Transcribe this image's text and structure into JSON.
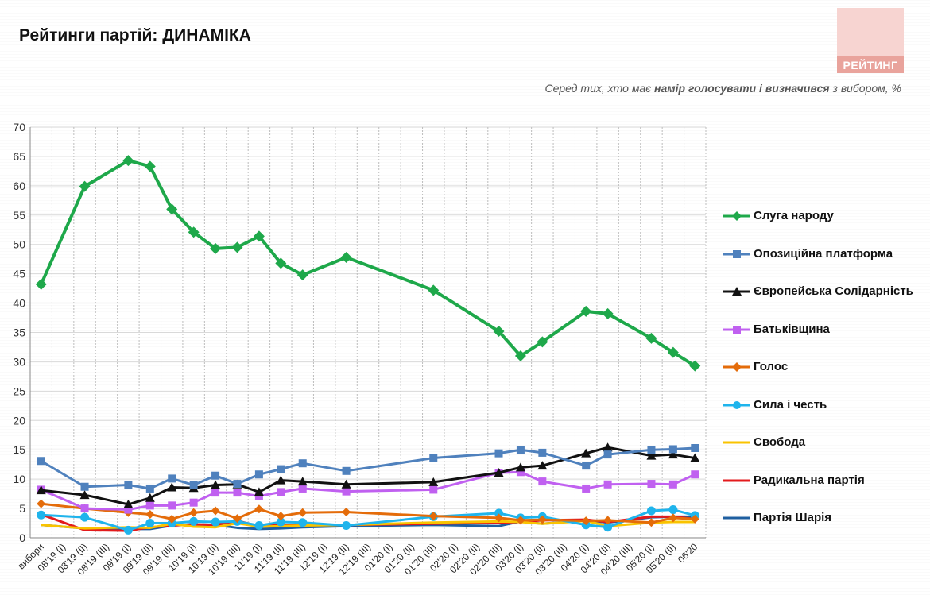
{
  "title": "Рейтинги партій: ДИНАМІКА",
  "logo": {
    "text": "РЕЙТИНГ"
  },
  "subtitle": {
    "pre": "Серед тих, хто має ",
    "bold": "намір голосувати і визначився",
    "post": " з вибором, %"
  },
  "chart_data": {
    "type": "line",
    "categories": [
      "вибори",
      "08'19 (І)",
      "08'19 (ІІ)",
      "08'19 (ІІІ)",
      "09'19 (І)",
      "09'19 (ІІ)",
      "09'19 (ІІІ)",
      "10'19 (І)",
      "10'19 (ІІ)",
      "10'19 (ІІІ)",
      "11'19 (І)",
      "11'19 (ІІ)",
      "11'19 (ІІІ)",
      "12'19 (І)",
      "12'19 (ІІ)",
      "12'19 (ІІІ)",
      "01'20 (І)",
      "01'20 (ІІ)",
      "01'20 (ІІІ)",
      "02'20 (І)",
      "02'20 (ІІ)",
      "02'20 (ІІІ)",
      "03'20 (І)",
      "03'20 (ІІ)",
      "03'20 (ІІІ)",
      "04'20 (І)",
      "04'20 (ІІ)",
      "04'20 (ІІІ)",
      "05'20 (І)",
      "05'20 (ІІ)",
      "06'20"
    ],
    "ylim": [
      0,
      70
    ],
    "yticks": [
      0,
      5,
      10,
      15,
      20,
      25,
      30,
      35,
      40,
      45,
      50,
      55,
      60,
      65,
      70
    ],
    "grid": true,
    "legend_position": "right",
    "series": [
      {
        "name": "Слуга народу",
        "color": "#1ea84a",
        "marker": "diamond",
        "values": [
          43.2,
          null,
          59.9,
          null,
          64.3,
          63.3,
          56,
          52.1,
          49.3,
          49.5,
          51.4,
          46.8,
          44.8,
          null,
          47.8,
          null,
          null,
          null,
          42.2,
          null,
          null,
          35.2,
          31,
          33.4,
          null,
          38.6,
          38.2,
          null,
          34,
          31.6,
          29.3
        ]
      },
      {
        "name": "Опозиційна платформа",
        "color": "#4f81bd",
        "marker": "square",
        "values": [
          13.1,
          null,
          8.7,
          null,
          9,
          8.4,
          10.1,
          9,
          10.6,
          9.2,
          10.8,
          11.7,
          12.7,
          null,
          11.4,
          null,
          null,
          null,
          13.6,
          null,
          null,
          14.4,
          15,
          14.5,
          null,
          12.3,
          14.2,
          null,
          15,
          15.1,
          15.3
        ]
      },
      {
        "name": "Європейська Солідарність",
        "color": "#111111",
        "marker": "triangle",
        "values": [
          8.1,
          null,
          7.3,
          null,
          5.7,
          6.8,
          8.6,
          8.5,
          9,
          9.1,
          7.8,
          9.8,
          9.6,
          null,
          9.1,
          null,
          null,
          null,
          9.5,
          null,
          null,
          11.1,
          12,
          12.3,
          null,
          14.4,
          15.4,
          null,
          14,
          14.2,
          13.6
        ]
      },
      {
        "name": "Батьківщина",
        "color": "#c060f0",
        "marker": "square",
        "values": [
          8.2,
          null,
          5,
          null,
          4.8,
          5.5,
          5.5,
          6,
          7.7,
          7.7,
          7.1,
          7.8,
          8.4,
          null,
          7.9,
          null,
          null,
          null,
          8.2,
          null,
          null,
          11.1,
          11.2,
          9.6,
          null,
          8.4,
          9.1,
          null,
          9.2,
          9.1,
          10.8
        ]
      },
      {
        "name": "Голос",
        "color": "#e46c0a",
        "marker": "diamond",
        "values": [
          5.8,
          null,
          5,
          null,
          4.3,
          4,
          3.2,
          4.3,
          4.6,
          3.3,
          4.9,
          3.7,
          4.3,
          null,
          4.4,
          null,
          null,
          null,
          3.7,
          null,
          null,
          3.4,
          3,
          3.1,
          null,
          2.9,
          3,
          null,
          2.6,
          3.4,
          3.2
        ]
      },
      {
        "name": "Сила і честь",
        "color": "#1fb4ec",
        "marker": "circle",
        "values": [
          3.9,
          null,
          3.5,
          null,
          1.3,
          2.5,
          2.5,
          2.8,
          2.7,
          2.8,
          2.1,
          2.7,
          2.6,
          null,
          2.1,
          null,
          null,
          null,
          3.6,
          null,
          null,
          4.2,
          3.4,
          3.6,
          null,
          2.2,
          1.8,
          null,
          4.6,
          4.8,
          3.8
        ]
      },
      {
        "name": "Свобода",
        "color": "#f9c300",
        "marker": "none",
        "values": [
          2.2,
          null,
          1.6,
          null,
          1.8,
          1.7,
          2.4,
          1.9,
          1.8,
          2.5,
          1.9,
          2,
          2.1,
          null,
          2.2,
          null,
          null,
          null,
          2.6,
          null,
          null,
          2.8,
          2.7,
          2.4,
          null,
          2.9,
          2,
          null,
          2.6,
          2.7,
          2.7
        ]
      },
      {
        "name": "Радикальна партія",
        "color": "#e31a1c",
        "marker": "none",
        "values": [
          4,
          null,
          1.3,
          null,
          1.2,
          1.8,
          2.1,
          2.3,
          2.2,
          2.9,
          2,
          2.2,
          2.2,
          null,
          2.2,
          null,
          null,
          null,
          2.4,
          null,
          null,
          2.6,
          2.7,
          3,
          null,
          3.1,
          2.7,
          null,
          3.6,
          3.6,
          3.2
        ]
      },
      {
        "name": "Партія Шарія",
        "color": "#1f5fa0",
        "marker": "none",
        "values": [
          2.2,
          null,
          1.6,
          null,
          1.5,
          1.5,
          2.1,
          2.3,
          2.2,
          1.7,
          1.5,
          1.6,
          1.8,
          null,
          2,
          null,
          null,
          null,
          2.2,
          null,
          null,
          2,
          2.8,
          2.4,
          null,
          3,
          2.6,
          null,
          3.5,
          3.6,
          3.6
        ]
      }
    ]
  }
}
